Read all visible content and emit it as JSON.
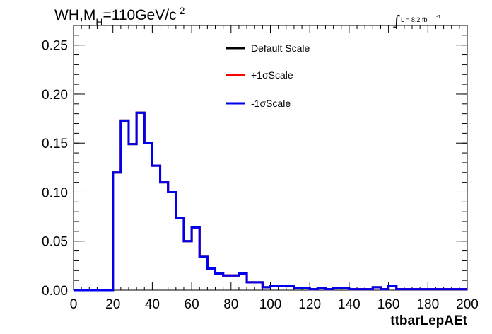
{
  "header": {
    "main": "WH,M",
    "subscript": "H",
    "rest": "=110GeV/c",
    "superscript": "2"
  },
  "luminosity": {
    "integral_symbol": "∫",
    "text": "L = 8.2 fb",
    "superscript": "-1"
  },
  "colors": {
    "default": "#000000",
    "plus": "#ff0000",
    "minus": "#0000ee"
  },
  "chart_data": {
    "type": "line",
    "xlabel": "ttbarLepAEt",
    "ylabel": "",
    "xlim": [
      0,
      200
    ],
    "ylim": [
      0,
      0.27
    ],
    "x_ticks": [
      "0",
      "20",
      "40",
      "60",
      "80",
      "100",
      "120",
      "140",
      "160",
      "180",
      "200"
    ],
    "y_ticks": [
      "0.00",
      "0.05",
      "0.10",
      "0.15",
      "0.20",
      "0.25"
    ],
    "bin_width": 4,
    "bin_edges_start": 0,
    "legend_position": "top-center",
    "series": [
      {
        "name": "Default Scale",
        "color": "#000000",
        "values": [
          0,
          0,
          0,
          0,
          0,
          0.12,
          0.173,
          0.149,
          0.181,
          0.15,
          0.127,
          0.11,
          0.1,
          0.074,
          0.05,
          0.064,
          0.034,
          0.022,
          0.017,
          0.015,
          0.015,
          0.017,
          0.008,
          0.008,
          0.003,
          0.004,
          0.004,
          0.004,
          0.002,
          0.002,
          0.001,
          0.002,
          0.001,
          0.002,
          0.002,
          0.001,
          0.001,
          0.001,
          0.003,
          0.001,
          0.004,
          0.001,
          0.001,
          0.001,
          0.001,
          0.001,
          0.001,
          0.001,
          0.001,
          0.001
        ]
      },
      {
        "name": "+1σScale",
        "color": "#ff0000",
        "values": [
          0,
          0,
          0,
          0,
          0,
          0.12,
          0.173,
          0.149,
          0.181,
          0.15,
          0.127,
          0.11,
          0.1,
          0.074,
          0.05,
          0.064,
          0.034,
          0.022,
          0.017,
          0.015,
          0.015,
          0.017,
          0.008,
          0.008,
          0.003,
          0.004,
          0.004,
          0.004,
          0.002,
          0.002,
          0.001,
          0.002,
          0.001,
          0.002,
          0.002,
          0.001,
          0.001,
          0.001,
          0.003,
          0.001,
          0.004,
          0.001,
          0.001,
          0.001,
          0.001,
          0.001,
          0.001,
          0.001,
          0.001,
          0.001
        ]
      },
      {
        "name": "-1σScale",
        "color": "#0000ee",
        "values": [
          0,
          0,
          0,
          0,
          0,
          0.12,
          0.173,
          0.149,
          0.181,
          0.15,
          0.127,
          0.11,
          0.1,
          0.074,
          0.05,
          0.064,
          0.034,
          0.022,
          0.017,
          0.015,
          0.015,
          0.017,
          0.008,
          0.008,
          0.003,
          0.004,
          0.004,
          0.004,
          0.002,
          0.002,
          0.001,
          0.002,
          0.001,
          0.002,
          0.002,
          0.001,
          0.001,
          0.001,
          0.003,
          0.001,
          0.004,
          0.001,
          0.001,
          0.001,
          0.001,
          0.001,
          0.001,
          0.001,
          0.001,
          0.001
        ]
      }
    ]
  }
}
